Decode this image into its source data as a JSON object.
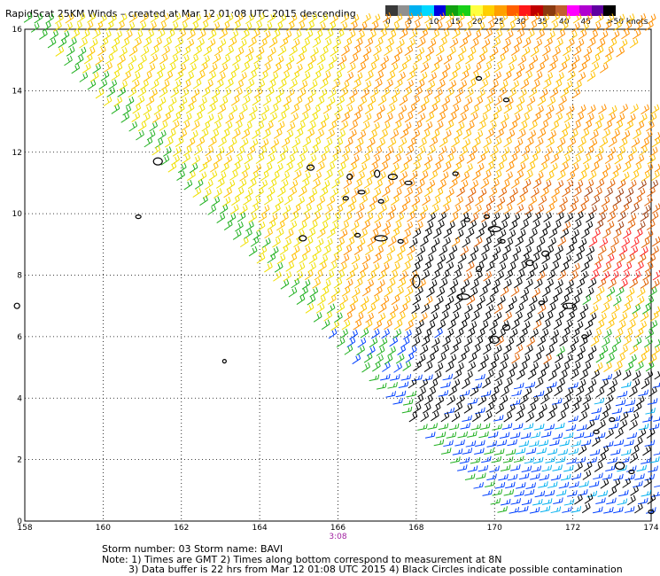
{
  "title": "RapidScat 25KM Winds – created at Mar 12 01:08 UTC 2015 descending",
  "speed_scale": {
    "colors": [
      "#383838",
      "#909090",
      "#00b0f0",
      "#00d8ff",
      "#0000e0",
      "#10a010",
      "#18d018",
      "#ffff40",
      "#ffd000",
      "#ffa000",
      "#ff6000",
      "#ff1818",
      "#c00000",
      "#8a3a10",
      "#c06030",
      "#ff00ff",
      "#b000d0",
      "#6000a0",
      "#000000"
    ],
    "labels": [
      "0",
      "5",
      "10",
      "15",
      "20",
      "25",
      "30",
      "35",
      "40",
      "45",
      ">50 knots"
    ]
  },
  "axes": {
    "y_labels": [
      "16",
      "14",
      "12",
      "10",
      "8",
      "6",
      "4",
      "2",
      "0"
    ],
    "x_labels": [
      "158",
      "160",
      "162",
      "164",
      "166",
      "168",
      "170",
      "172",
      "174"
    ],
    "x_range": [
      158,
      174
    ],
    "y_range": [
      0,
      16
    ]
  },
  "pass_time": "3:08",
  "pass_time_color": "#a020a0",
  "wind_colors": {
    "yellow": "#f0e000",
    "light_orange": "#ffc000",
    "orange": "#ff9000",
    "dark_orange": "#e06000",
    "red": "#ff2020",
    "green": "#20b020",
    "blue": "#0040ff",
    "cyan": "#00b0f0",
    "black": "#000000",
    "brown": "#a04010",
    "land": "#000000"
  },
  "footer": {
    "line1": "Storm number: 03     Storm name: BAVI",
    "line2": "Note: 1) Times are GMT  2) Times along bottom correspond to measurement at 8N",
    "line3": "3) Data buffer is 22 hrs from Mar 12 01:08 UTC 2015  4) Black Circles indicate possible contamination"
  }
}
